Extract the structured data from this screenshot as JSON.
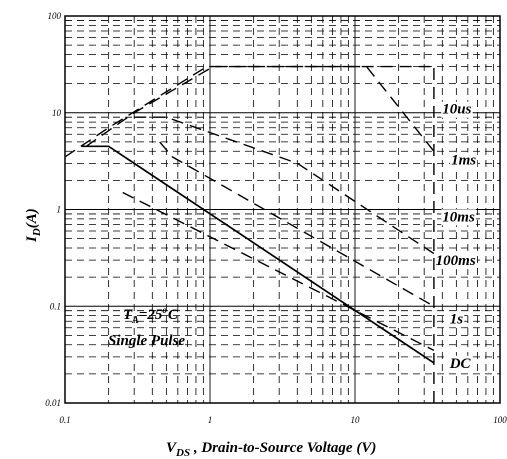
{
  "chart_data": {
    "type": "line",
    "x_scale": "log",
    "y_scale": "log",
    "xlim": [
      0.1,
      100
    ],
    "ylim": [
      0.01,
      100
    ],
    "grid": true,
    "x_ticks": [
      {
        "value": 0.1,
        "label": "0.1"
      },
      {
        "value": 1,
        "label": "1"
      },
      {
        "value": 10,
        "label": "10"
      },
      {
        "value": 100,
        "label": "100"
      }
    ],
    "y_ticks": [
      {
        "value": 0.01,
        "label": "0.01"
      },
      {
        "value": 0.1,
        "label": "0.1"
      },
      {
        "value": 1,
        "label": "1"
      },
      {
        "value": 10,
        "label": "10"
      },
      {
        "value": 100,
        "label": "100"
      }
    ],
    "xlabel_main": "V",
    "xlabel_sub": "DS",
    "xlabel_rest": " , Drain-to-Source Voltage (V)",
    "ylabel_main": "I",
    "ylabel_sub": "D",
    "ylabel_rest": "(A)",
    "annotation": {
      "line1_a": "T",
      "line1_sub": "A",
      "line1_b": "=25",
      "line1_sup": "o",
      "line1_c": "C",
      "line2": "Single Pulse"
    },
    "series": [
      {
        "name": "10us",
        "style": "dashed",
        "x": [
          0.1,
          0.2,
          0.95,
          35
        ],
        "y": [
          3.5,
          7,
          30,
          30
        ]
      },
      {
        "name": "1ms",
        "style": "dashed",
        "x": [
          0.14,
          0.3,
          1.05,
          12,
          35
        ],
        "y": [
          4.5,
          10,
          30,
          30,
          4
        ]
      },
      {
        "name": "10ms",
        "style": "dashed",
        "x": [
          0.3,
          0.5,
          4,
          35
        ],
        "y": [
          9,
          9,
          3,
          0.35
        ]
      },
      {
        "name": "100ms",
        "style": "dashed",
        "x": [
          0.45,
          0.55,
          35
        ],
        "y": [
          5,
          3.5,
          0.1
        ]
      },
      {
        "name": "1s",
        "style": "dashed",
        "x": [
          0.25,
          35
        ],
        "y": [
          1.5,
          0.035
        ]
      },
      {
        "name": "DC",
        "style": "solid",
        "x": [
          0.13,
          0.2,
          35
        ],
        "y": [
          4.5,
          4.5,
          0.026
        ]
      },
      {
        "name": "",
        "style": "dashed",
        "x": [
          35,
          35
        ],
        "y": [
          0.01,
          30
        ]
      }
    ],
    "curve_labels": [
      {
        "text": "10us",
        "x": 40,
        "y": 11
      },
      {
        "text": "1ms",
        "x": 46,
        "y": 3.3
      },
      {
        "text": "10ms",
        "x": 40,
        "y": 0.85
      },
      {
        "text": "100ms",
        "x": 36,
        "y": 0.3
      },
      {
        "text": "1s",
        "x": 45,
        "y": 0.075
      },
      {
        "text": "DC",
        "x": 45,
        "y": 0.026
      }
    ]
  }
}
